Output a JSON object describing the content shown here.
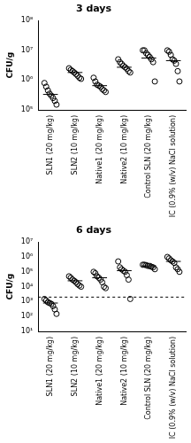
{
  "chart_data": [
    {
      "type": "scatter",
      "title": "3 days",
      "y_label": "CFU/g",
      "categories": [
        "SLN1 (20 mg/kg)",
        "SLN2 (10 mg/kg)",
        "Native1 (20 mg/kg)",
        "Native2 (10 mg/kg)",
        "Control SLN (20 mg/kg)",
        "IC (0.9% (w/v) NaCl solution)"
      ],
      "values": [
        [
          800000,
          600000,
          450000,
          350000,
          300000,
          250000,
          200000,
          150000
        ],
        [
          2500000,
          2200000,
          2000000,
          1800000,
          1600000,
          1400000,
          1200000,
          1100000
        ],
        [
          1200000,
          900000,
          700000,
          650000,
          600000,
          500000,
          450000,
          400000
        ],
        [
          5000000,
          4000000,
          3500000,
          3000000,
          2700000,
          2400000,
          2000000,
          1800000
        ],
        [
          10000000,
          10000000,
          8000000,
          7000000,
          6000000,
          5000000,
          4000000,
          900000
        ],
        [
          10000000,
          9000000,
          7000000,
          5000000,
          4500000,
          3500000,
          2000000,
          900000
        ]
      ],
      "medians": [
        330000,
        1800000,
        650000,
        2700000,
        5500000,
        4500000
      ],
      "color": "#000000",
      "marker": "open_circle",
      "log": "y",
      "grid": false,
      "ylim": [
        100000,
        100000000
      ],
      "yticks": [
        {
          "value": 100000,
          "label": "10⁵"
        },
        {
          "value": 1000000,
          "label": "10⁶"
        },
        {
          "value": 10000000,
          "label": "10⁷"
        },
        {
          "value": 100000000,
          "label": "10⁸"
        }
      ]
    },
    {
      "type": "scatter",
      "title": "6 days",
      "y_label": "CFU/g",
      "categories": [
        "SLN1 (20 mg/kg)",
        "SLN2 (10 mg/kg)",
        "Native1 (20 mg/kg)",
        "Native2 (10 mg/kg)",
        "Control SLN (20 mg/kg)",
        "IC (0.9% (w/v) NaCl solution)"
      ],
      "values": [
        [
          1500,
          1200,
          900,
          800,
          700,
          500,
          300,
          150
        ],
        [
          50000,
          40000,
          30000,
          25000,
          20000,
          15000,
          12000,
          10000
        ],
        [
          100000,
          80000,
          50000,
          40000,
          30000,
          20000,
          10000,
          8000
        ],
        [
          500000,
          200000,
          150000,
          120000,
          100000,
          60000,
          30000,
          1500
        ],
        [
          300000,
          300000,
          280000,
          250000,
          250000,
          220000,
          200000,
          150000
        ],
        [
          1000000,
          800000,
          600000,
          500000,
          400000,
          200000,
          150000,
          100000
        ]
      ],
      "medians": [
        800,
        25000,
        40000,
        120000,
        250000,
        500000
      ],
      "threshold": {
        "value": 2000,
        "line_style": "dashed"
      },
      "color": "#000000",
      "marker": "open_circle",
      "log": "y",
      "grid": false,
      "ylim": [
        10,
        10000000
      ],
      "yticks": [
        {
          "value": 10,
          "label": "10¹"
        },
        {
          "value": 100,
          "label": "10²"
        },
        {
          "value": 1000,
          "label": "10³"
        },
        {
          "value": 10000,
          "label": "10⁴"
        },
        {
          "value": 100000,
          "label": "10⁵"
        },
        {
          "value": 1000000,
          "label": "10⁶"
        },
        {
          "value": 10000000,
          "label": "10⁷"
        }
      ]
    }
  ]
}
